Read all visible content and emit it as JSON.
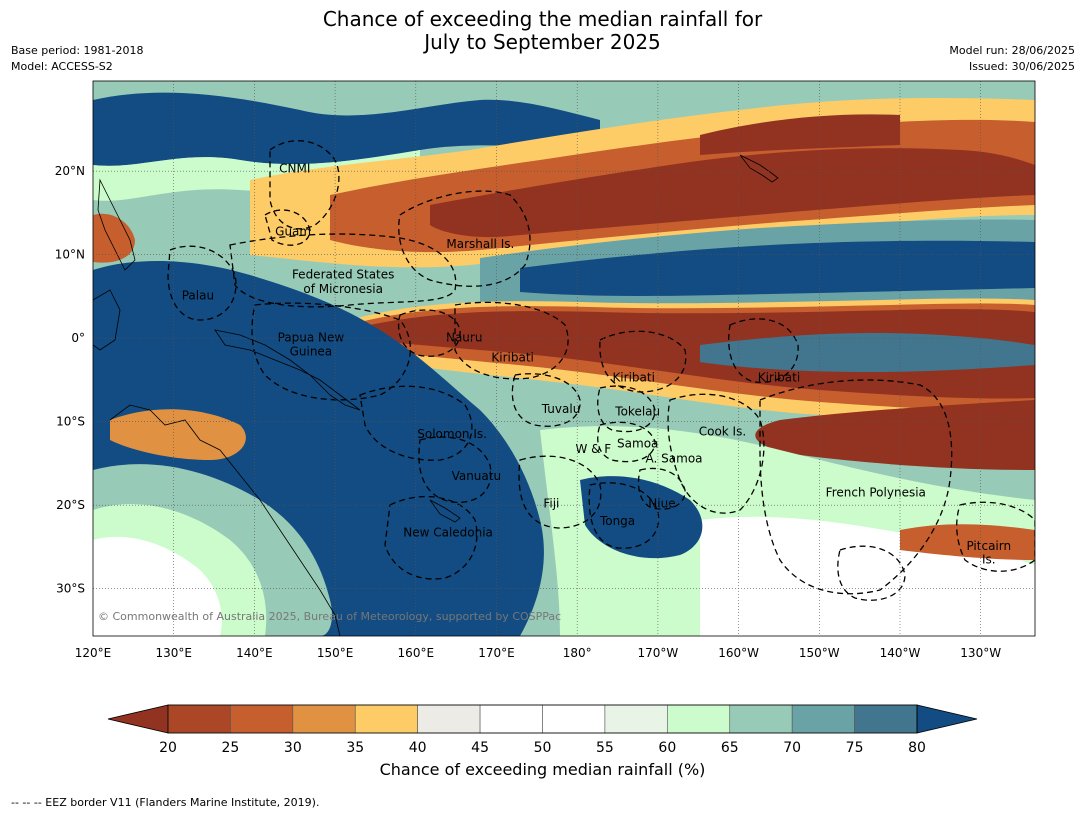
{
  "title_line1": "Chance of exceeding the median rainfall for",
  "title_line2": "July to September 2025",
  "meta_left": [
    "Base period: 1981-2018",
    "Model: ACCESS-S2"
  ],
  "meta_right": [
    "Model run: 28/06/2025",
    "Issued: 30/06/2025"
  ],
  "copyright": "© Commonwealth of Australia 2025, Bureau of Meteorology, supported by COSPPac",
  "lon_ticks": [
    "120°E",
    "130°E",
    "140°E",
    "150°E",
    "160°E",
    "170°E",
    "180°",
    "170°W",
    "160°W",
    "150°W",
    "140°W",
    "130°W"
  ],
  "lat_ticks": [
    "20°N",
    "10°N",
    "0°",
    "10°S",
    "20°S",
    "30°S"
  ],
  "regions": [
    {
      "name": "CNMI",
      "lon": 145,
      "lat": 20.3
    },
    {
      "name": "Guam",
      "lon": 144.8,
      "lat": 12.8
    },
    {
      "name": "Marshall Is.",
      "lon": 168,
      "lat": 11.3
    },
    {
      "name": "Federated States",
      "lon": 151,
      "lat": 7.6
    },
    {
      "name": "of Micronesia",
      "lon": 151,
      "lat": 5.9
    },
    {
      "name": "Palau",
      "lon": 133,
      "lat": 5.1
    },
    {
      "name": "Papua New",
      "lon": 147,
      "lat": 0.1
    },
    {
      "name": "Guinea",
      "lon": 147,
      "lat": -1.6
    },
    {
      "name": "Nauru",
      "lon": 166,
      "lat": 0.1
    },
    {
      "name": "Kiribati",
      "lon": 172,
      "lat": -2.3
    },
    {
      "name": "Kiribati",
      "lon": 187,
      "lat": -4.7
    },
    {
      "name": "Kiribati",
      "lon": 205,
      "lat": -4.7
    },
    {
      "name": "Tuvalu",
      "lon": 178,
      "lat": -8.5
    },
    {
      "name": "Tokelau",
      "lon": 187.5,
      "lat": -8.8
    },
    {
      "name": "Cook Is.",
      "lon": 198,
      "lat": -11.2
    },
    {
      "name": "Solomon Is.",
      "lon": 164.5,
      "lat": -11.5
    },
    {
      "name": "W & F",
      "lon": 182,
      "lat": -13.3
    },
    {
      "name": "Samoa",
      "lon": 187.5,
      "lat": -12.6
    },
    {
      "name": "A. Samoa",
      "lon": 192,
      "lat": -14.4
    },
    {
      "name": "Vanuatu",
      "lon": 167.5,
      "lat": -16.5
    },
    {
      "name": "Fiji",
      "lon": 176.8,
      "lat": -19.8
    },
    {
      "name": "Niue",
      "lon": 190.5,
      "lat": -19.8
    },
    {
      "name": "Tonga",
      "lon": 185,
      "lat": -21.9
    },
    {
      "name": "French Polynesia",
      "lon": 217,
      "lat": -18.5
    },
    {
      "name": "New Caledonia",
      "lon": 164,
      "lat": -23.3
    },
    {
      "name": "Pitcairn",
      "lon": 231,
      "lat": -24.9
    },
    {
      "name": "Is.",
      "lon": 231,
      "lat": -26.5
    }
  ],
  "colorbar": {
    "ticks": [
      "20",
      "25",
      "30",
      "35",
      "40",
      "45",
      "50",
      "55",
      "60",
      "65",
      "70",
      "75",
      "80"
    ],
    "colors": [
      "#ab4726",
      "#c65e2e",
      "#e09242",
      "#fdcc66",
      "#edebe6",
      "#ffffff",
      "#ffffff",
      "#e8f5e6",
      "#ccfccb",
      "#98cbb7",
      "#6aa3a6",
      "#42768f"
    ],
    "under_color": "#923321",
    "over_color": "#124c82",
    "title": "Chance of exceeding median rainfall (%)"
  },
  "footer": "--  --  -- EEZ border V11 (Flanders Marine Institute, 2019)."
}
